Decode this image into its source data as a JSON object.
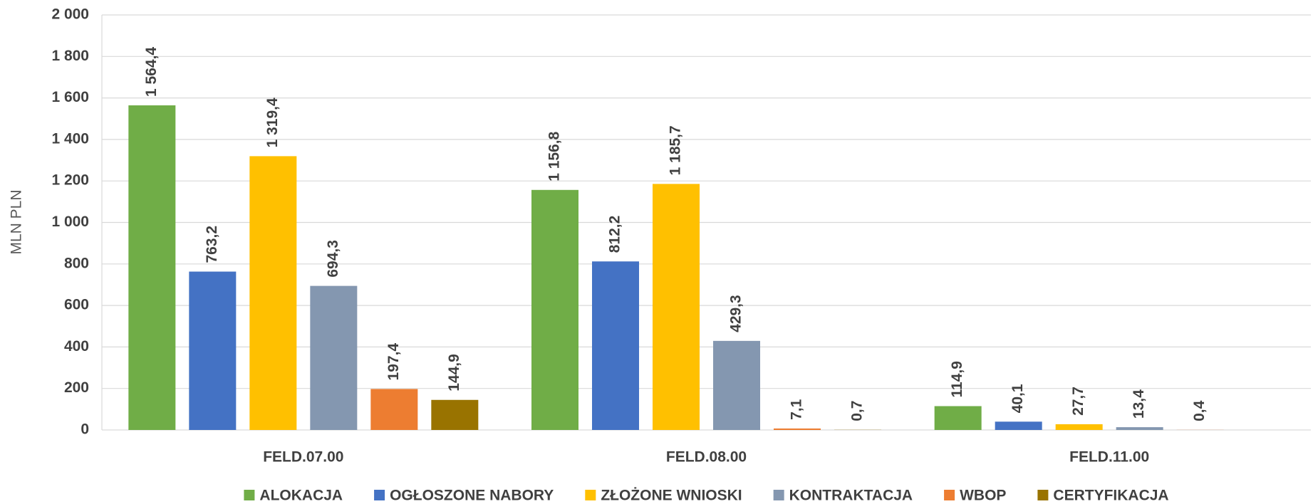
{
  "chart_data": {
    "type": "bar",
    "y_label": "MLN PLN",
    "categories": [
      "FELD.07.00",
      "FELD.08.00",
      "FELD.11.00"
    ],
    "series": [
      {
        "name": "ALOKACJA",
        "color": "#70ad47",
        "values": [
          1564.4,
          1156.8,
          114.9
        ],
        "value_labels": [
          "1 564,4",
          "1 156,8",
          "114,9"
        ]
      },
      {
        "name": "OGŁOSZONE NABORY",
        "color": "#4472c4",
        "values": [
          763.2,
          812.2,
          40.1
        ],
        "value_labels": [
          "763,2",
          "812,2",
          "40,1"
        ]
      },
      {
        "name": "ZŁOŻONE WNIOSKI",
        "color": "#ffc000",
        "values": [
          1319.4,
          1185.7,
          27.7
        ],
        "value_labels": [
          "1 319,4",
          "1 185,7",
          "27,7"
        ]
      },
      {
        "name": "KONTRAKTACJA",
        "color": "#8497b0",
        "values": [
          694.3,
          429.3,
          13.4
        ],
        "value_labels": [
          "694,3",
          "429,3",
          "13,4"
        ]
      },
      {
        "name": "WBOP",
        "color": "#ed7d31",
        "values": [
          197.4,
          7.1,
          0.4
        ],
        "value_labels": [
          "197,4",
          "7,1",
          "0,4"
        ]
      },
      {
        "name": "CERTYFIKACJA",
        "color": "#997300",
        "values": [
          144.9,
          0.7,
          null
        ],
        "value_labels": [
          "144,9",
          "0,7",
          null
        ]
      }
    ],
    "ylim": [
      0,
      2000
    ],
    "yticks": [
      0,
      200,
      400,
      600,
      800,
      {
        "value": 1000,
        "label": "1 000"
      },
      {
        "value": 1200,
        "label": "1 200"
      },
      {
        "value": 1400,
        "label": "1 400"
      },
      {
        "value": 1600,
        "label": "1 600"
      },
      {
        "value": 1800,
        "label": "1 800"
      },
      {
        "value": 2000,
        "label": "2 000"
      }
    ],
    "grid": true
  }
}
